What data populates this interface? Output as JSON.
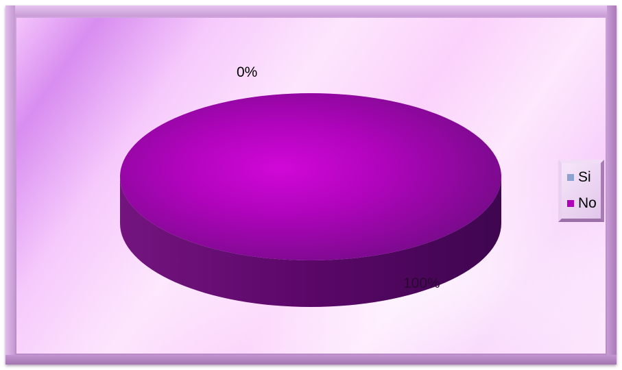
{
  "chart_data": {
    "type": "pie",
    "categories": [
      "Si",
      "No"
    ],
    "values": [
      0,
      100
    ],
    "value_labels": [
      "0%",
      "100%"
    ],
    "colors": [
      "#8ea2cf",
      "#b000b8"
    ],
    "pie_style": "3d",
    "legend_position": "right",
    "title": "",
    "xlabel": "",
    "ylabel": ""
  },
  "legend": {
    "items": [
      {
        "label": "Si",
        "color": "#8ea2cf"
      },
      {
        "label": "No",
        "color": "#b000b8"
      }
    ]
  }
}
